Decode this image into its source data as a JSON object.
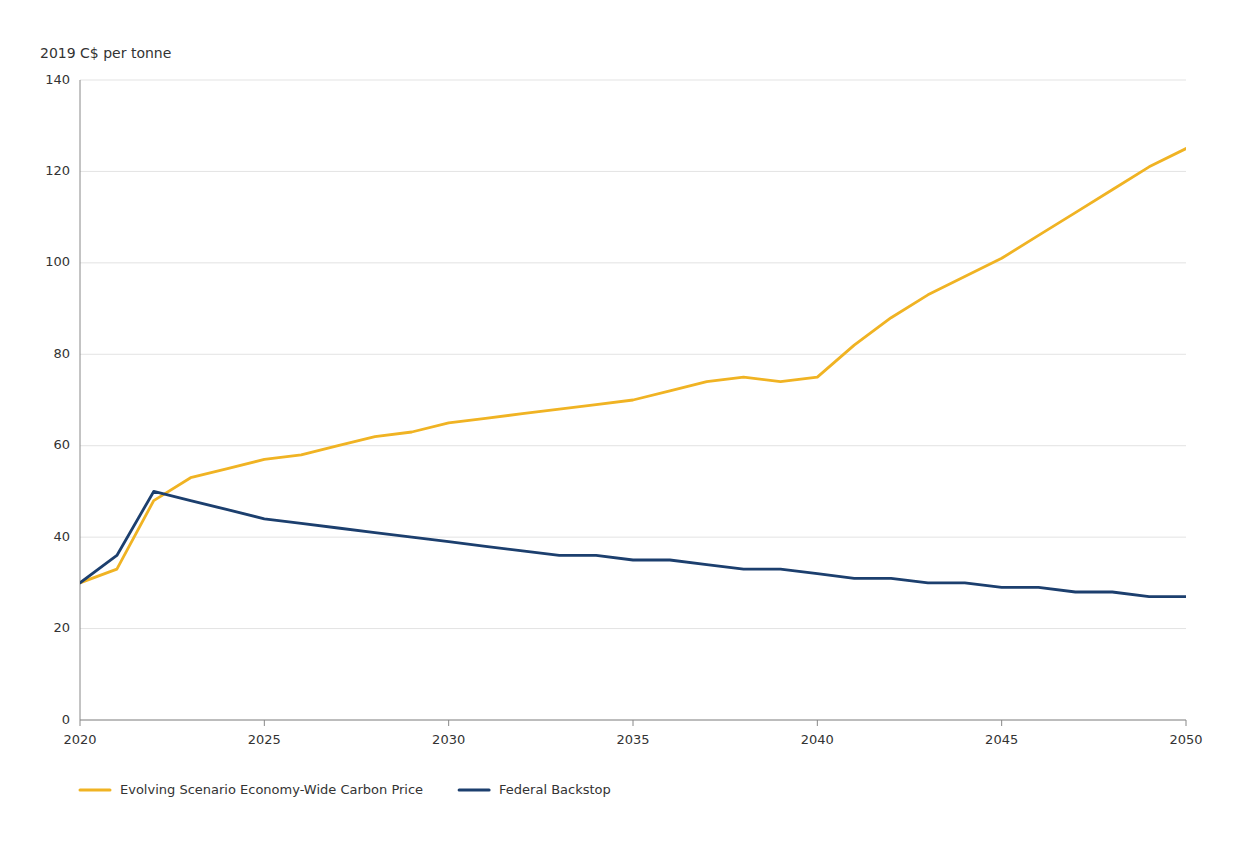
{
  "chart_data": {
    "type": "line",
    "ylabel": "2019 C$ per tonne",
    "x": [
      2020,
      2021,
      2022,
      2023,
      2024,
      2025,
      2026,
      2027,
      2028,
      2029,
      2030,
      2031,
      2032,
      2033,
      2034,
      2035,
      2036,
      2037,
      2038,
      2039,
      2040,
      2041,
      2042,
      2043,
      2044,
      2045,
      2046,
      2047,
      2048,
      2049,
      2050
    ],
    "series": [
      {
        "name": "Evolving Scenario Economy-Wide Carbon Price",
        "color": "#f0b323",
        "values": [
          30,
          33,
          48,
          53,
          55,
          57,
          58,
          60,
          62,
          63,
          65,
          66,
          67,
          68,
          69,
          70,
          72,
          74,
          75,
          74,
          75,
          82,
          88,
          93,
          97,
          101,
          106,
          111,
          116,
          121,
          125
        ]
      },
      {
        "name": "Federal Backstop",
        "color": "#1c3f6e",
        "values": [
          30,
          36,
          50,
          48,
          46,
          44,
          43,
          42,
          41,
          40,
          39,
          38,
          37,
          36,
          36,
          35,
          35,
          34,
          33,
          33,
          32,
          31,
          31,
          30,
          30,
          29,
          29,
          28,
          28,
          27,
          27
        ]
      }
    ],
    "xlim": [
      2020,
      2050
    ],
    "xticks": [
      2020,
      2025,
      2030,
      2035,
      2040,
      2045,
      2050
    ],
    "ylim": [
      0,
      140
    ],
    "yticks": [
      0,
      20,
      40,
      60,
      80,
      100,
      120,
      140
    ],
    "grid": true,
    "legend": "bottom"
  }
}
